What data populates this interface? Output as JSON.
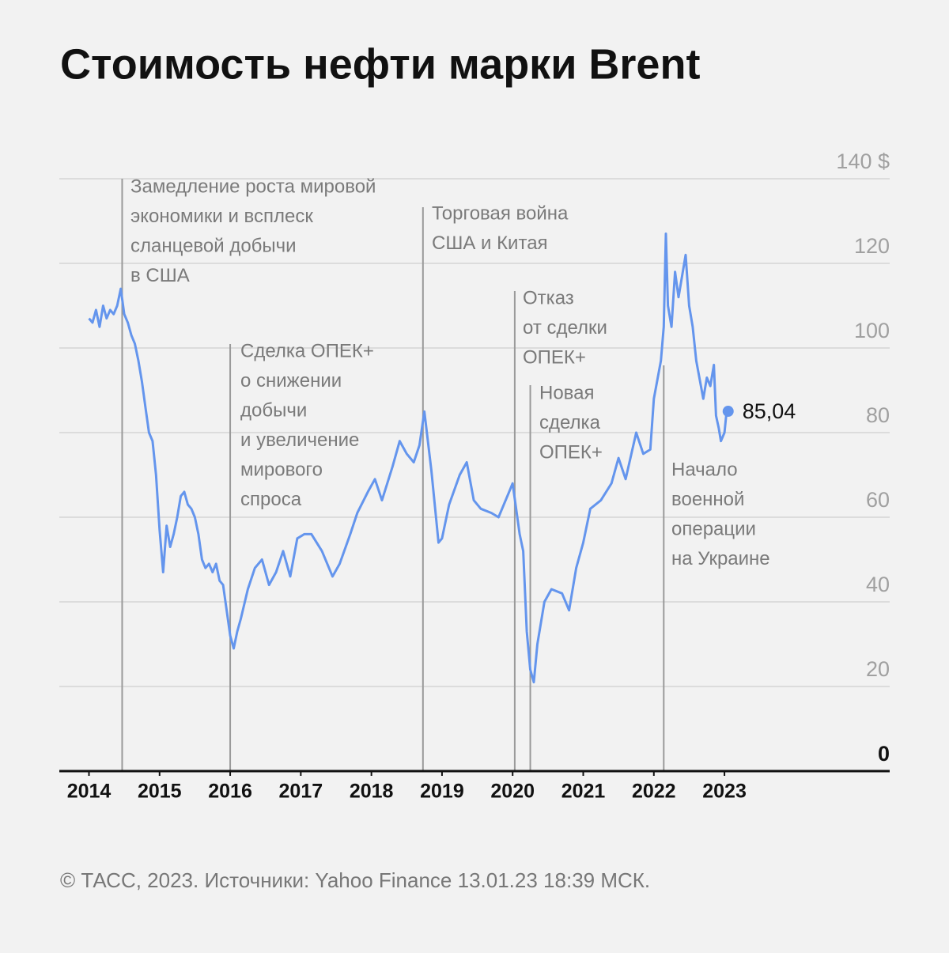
{
  "chart_data": {
    "type": "line",
    "title": "Стоимость нефти марки Brent",
    "footer": "© ТАСС, 2023. Источники: Yahoo Finance 13.01.23 18:39 МСК.",
    "color": "#6495ed",
    "xlim": [
      2013.58,
      2025.34
    ],
    "xticks": [
      2014,
      2015,
      2016,
      2017,
      2018,
      2019,
      2020,
      2021,
      2022,
      2023
    ],
    "ylim": [
      0,
      140
    ],
    "yticks": [
      0,
      20,
      40,
      60,
      80,
      100,
      120,
      {
        "value": 140,
        "label": "140 $"
      }
    ],
    "grid": true,
    "x": [
      2014.0,
      2014.05,
      2014.1,
      2014.15,
      2014.2,
      2014.25,
      2014.3,
      2014.35,
      2014.4,
      2014.45,
      2014.5,
      2014.55,
      2014.6,
      2014.65,
      2014.7,
      2014.75,
      2014.8,
      2014.85,
      2014.9,
      2014.95,
      2015.0,
      2015.05,
      2015.1,
      2015.15,
      2015.2,
      2015.25,
      2015.3,
      2015.35,
      2015.4,
      2015.45,
      2015.5,
      2015.55,
      2015.6,
      2015.65,
      2015.7,
      2015.75,
      2015.8,
      2015.85,
      2015.9,
      2015.95,
      2016.0,
      2016.05,
      2016.1,
      2016.15,
      2016.25,
      2016.35,
      2016.45,
      2016.55,
      2016.65,
      2016.75,
      2016.85,
      2016.95,
      2017.05,
      2017.15,
      2017.3,
      2017.45,
      2017.55,
      2017.7,
      2017.8,
      2017.95,
      2018.05,
      2018.15,
      2018.3,
      2018.4,
      2018.5,
      2018.6,
      2018.68,
      2018.75,
      2018.85,
      2018.95,
      2019.0,
      2019.1,
      2019.25,
      2019.35,
      2019.45,
      2019.55,
      2019.7,
      2019.8,
      2019.95,
      2020.0,
      2020.1,
      2020.15,
      2020.2,
      2020.25,
      2020.3,
      2020.35,
      2020.45,
      2020.55,
      2020.7,
      2020.8,
      2020.9,
      2021.0,
      2021.1,
      2021.25,
      2021.4,
      2021.5,
      2021.6,
      2021.75,
      2021.85,
      2021.95,
      2022.0,
      2022.1,
      2022.14,
      2022.17,
      2022.2,
      2022.25,
      2022.3,
      2022.35,
      2022.45,
      2022.5,
      2022.55,
      2022.6,
      2022.7,
      2022.75,
      2022.8,
      2022.85,
      2022.88,
      2022.92,
      2022.95,
      2023.0,
      2023.03
    ],
    "values": [
      107,
      106,
      109,
      105,
      110,
      107,
      109,
      108,
      110,
      114,
      108,
      106,
      103,
      101,
      97,
      92,
      86,
      80,
      78,
      70,
      57,
      47,
      58,
      53,
      56,
      60,
      65,
      66,
      63,
      62,
      60,
      56,
      50,
      48,
      49,
      47,
      49,
      45,
      44,
      38,
      32,
      29,
      33,
      36,
      43,
      48,
      50,
      44,
      47,
      52,
      46,
      55,
      56,
      56,
      52,
      46,
      49,
      56,
      61,
      66,
      69,
      64,
      72,
      78,
      75,
      73,
      77,
      85,
      71,
      54,
      55,
      63,
      70,
      73,
      64,
      62,
      61,
      60,
      66,
      68,
      56,
      52,
      33,
      24,
      21,
      30,
      40,
      43,
      42,
      38,
      48,
      54,
      62,
      64,
      68,
      74,
      69,
      80,
      75,
      76,
      88,
      97,
      105,
      127,
      110,
      105,
      118,
      112,
      122,
      110,
      105,
      97,
      88,
      93,
      91,
      96,
      84,
      81,
      78,
      80,
      85.04
    ],
    "highlight": {
      "x": 2023.03,
      "value": 85.04,
      "label": "85,04"
    },
    "annotations": [
      {
        "x": 2014.47,
        "lines": [
          "Замедление роста мировой",
          "экономики и всплеск",
          "сланцевой добычи",
          "в США"
        ]
      },
      {
        "x": 2016.0,
        "lines": [
          "Сделка ОПЕК+",
          "о снижении",
          "добычи",
          "и увеличение",
          "мирового",
          "спроса"
        ]
      },
      {
        "x": 2018.73,
        "lines": [
          "Торговая война",
          "США и Китая"
        ]
      },
      {
        "x": 2020.03,
        "lines": [
          "Отказ",
          "от сделки",
          "ОПЕК+"
        ]
      },
      {
        "x": 2020.25,
        "lines": [
          "Новая",
          "сделка",
          "ОПЕК+"
        ]
      },
      {
        "x": 2022.14,
        "lines": [
          "Начало",
          "военной",
          "операции",
          "на Украине"
        ]
      }
    ]
  }
}
